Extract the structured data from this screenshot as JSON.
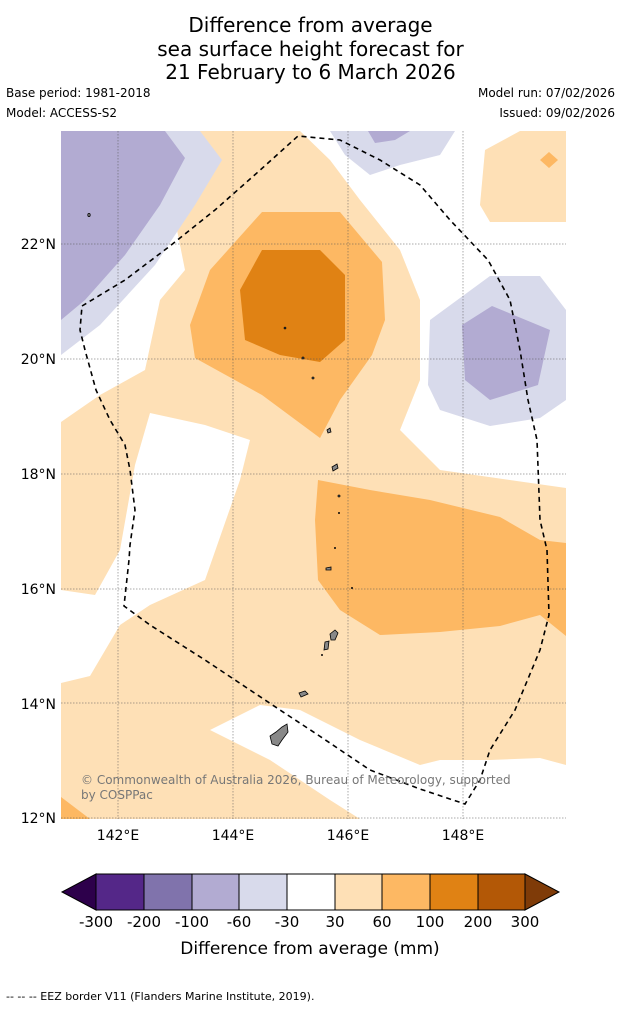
{
  "title": {
    "line1": "Difference from average",
    "line2": "sea surface height forecast for",
    "line3": "21 February to 6 March 2026"
  },
  "meta": {
    "base_period": "Base period: 1981-2018",
    "model": "Model: ACCESS-S2",
    "model_run": "Model run: 07/02/2026",
    "issued": "Issued: 09/02/2026"
  },
  "axes": {
    "lat_labels": [
      "22°N",
      "20°N",
      "18°N",
      "16°N",
      "14°N",
      "12°N"
    ],
    "lon_labels": [
      "142°E",
      "144°E",
      "146°E",
      "148°E"
    ]
  },
  "copyright": {
    "line1": "© Commonwealth of Australia 2026, Bureau of Meteorology, supported",
    "line2": "by COSPPac"
  },
  "colorbar": {
    "ticks": [
      "-300",
      "-200",
      "-100",
      "-60",
      "-30",
      "30",
      "60",
      "100",
      "200",
      "300"
    ],
    "label": "Difference from average (mm)",
    "colors": [
      "#2d004b",
      "#542788",
      "#8073ac",
      "#b2abd2",
      "#d8daeb",
      "#ffffff",
      "#fee0b6",
      "#fdb863",
      "#e08214",
      "#b35806",
      "#7f3b08"
    ]
  },
  "footer": "--  --  -- EEZ border V11 (Flanders Marine Institute, 2019)."
}
